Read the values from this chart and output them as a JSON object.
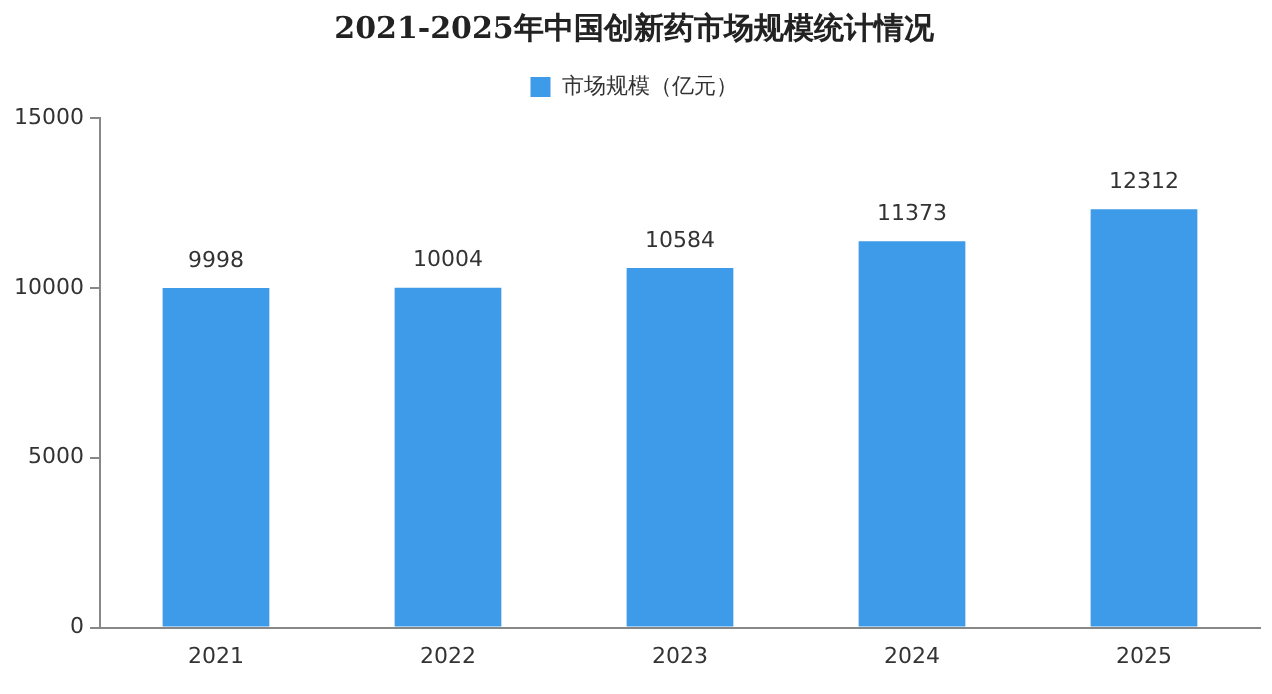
{
  "chart_data": {
    "type": "bar",
    "title": "2021-2025年中国创新药市场规模统计情况",
    "categories": [
      "2021",
      "2022",
      "2023",
      "2024",
      "2025"
    ],
    "series": [
      {
        "name": "市场规模（亿元）",
        "color": "#3d9be9",
        "values": [
          9998,
          10004,
          10584,
          11373,
          12312
        ]
      }
    ],
    "ylim": [
      0,
      15000
    ],
    "yticks": [
      0,
      5000,
      10000,
      15000
    ],
    "grid": false,
    "legend": "top",
    "data_labels": true
  }
}
